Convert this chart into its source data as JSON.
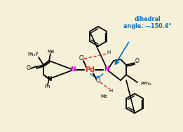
{
  "bg_color": "#f5f0d8",
  "title_text": "dihedral\nangle: —1 50.4°",
  "pd_label": "Pd",
  "n_label": "N",
  "cl_label": "Cl",
  "o_label": "O",
  "me_label": "Me",
  "h_label": "H",
  "ph_label": "Ph",
  "ph3p_label": "Ph₃P",
  "pph2_label": "PPh₂",
  "pd_color": "#e03030",
  "n_color": "#cc00cc",
  "blue_color": "#0070cc",
  "black": "#000000",
  "red_dot": "#cc0000",
  "figsize": [
    2.61,
    1.89
  ],
  "dpi": 100
}
